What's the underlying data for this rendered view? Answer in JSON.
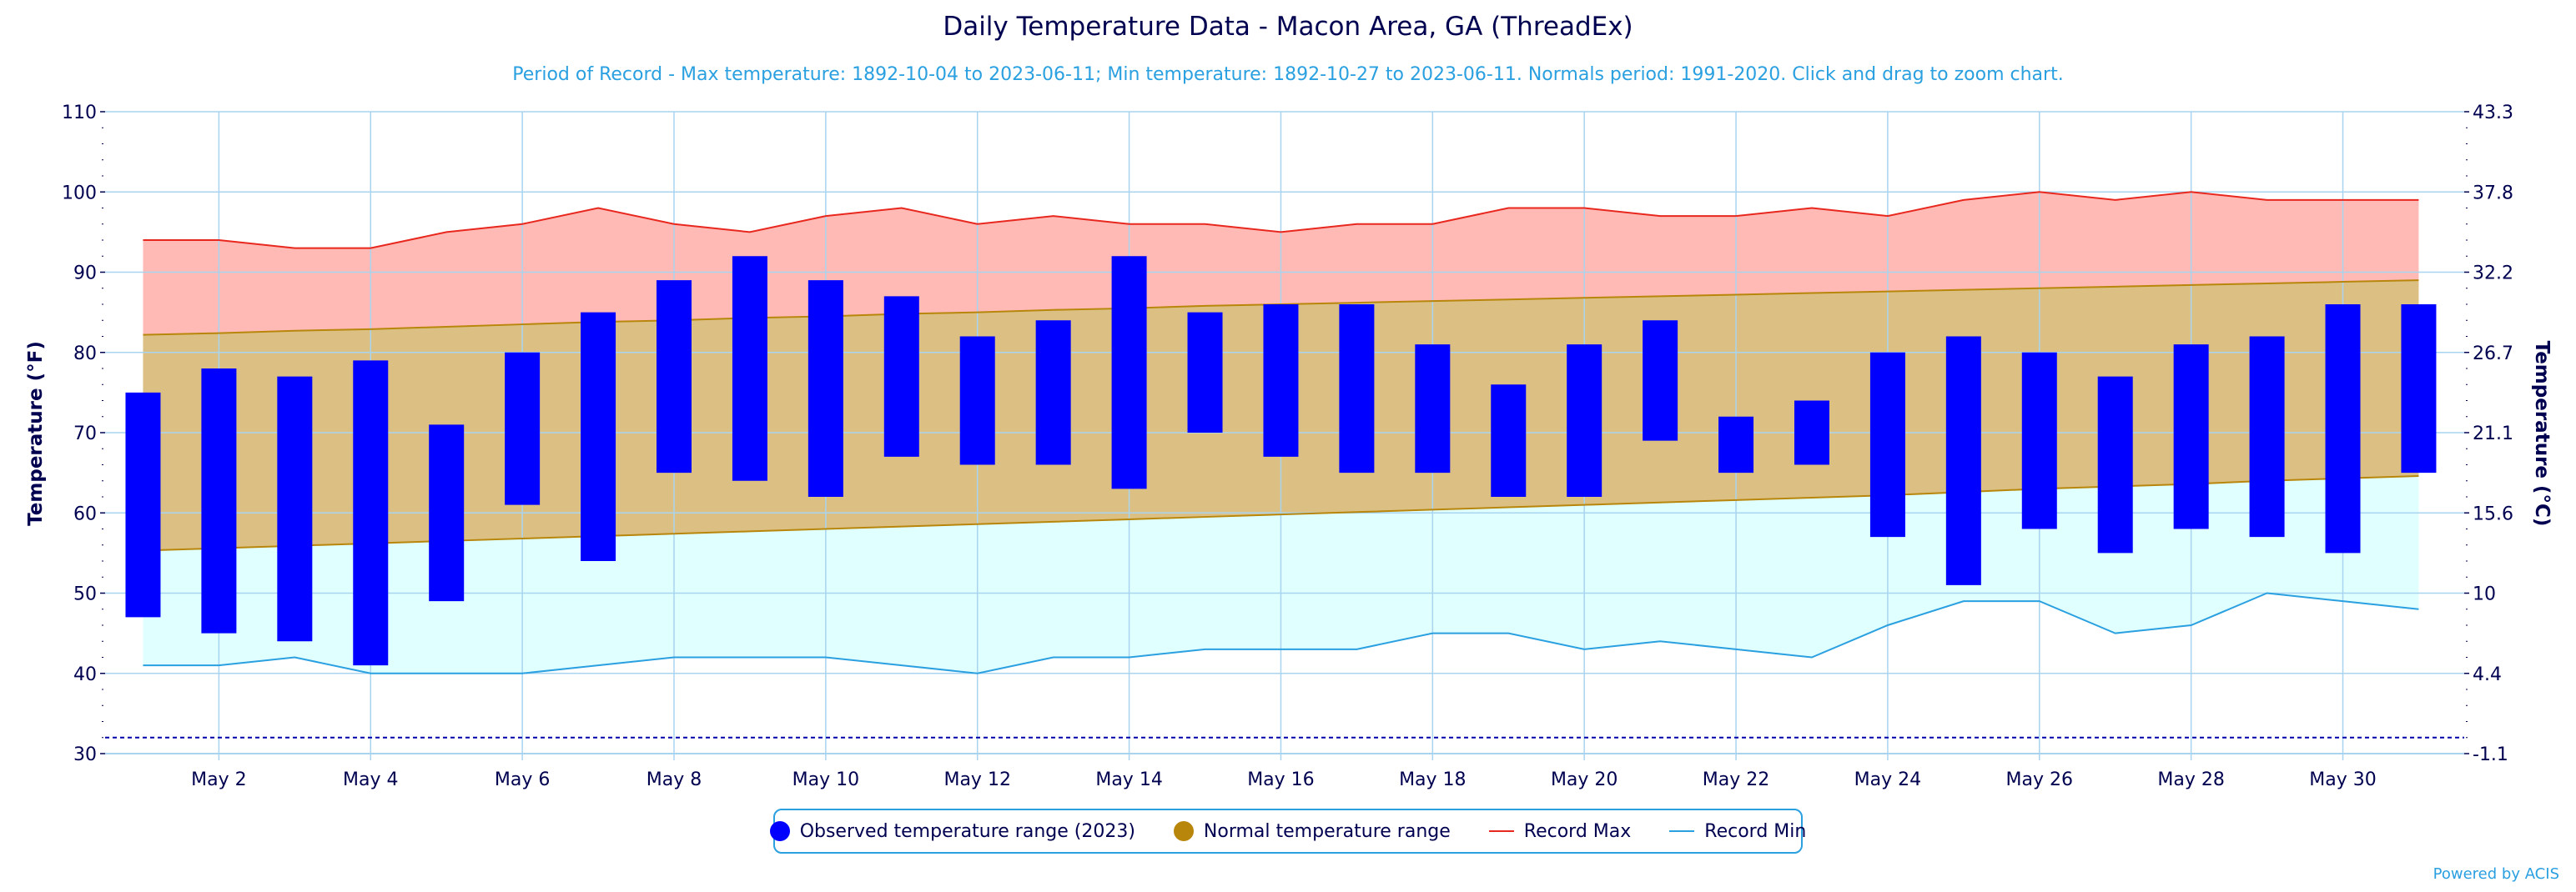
{
  "chart_data": {
    "type": "bar",
    "title": "Daily Temperature Data - Macon Area, GA (ThreadEx)",
    "subtitle": "Period of Record - Max temperature: 1892-10-04 to 2023-06-11; Min temperature: 1892-10-27 to 2023-06-11. Normals period: 1991-2020. Click and drag to zoom chart.",
    "ylabel": "Temperature (°F)",
    "ylabel_right": "Temperature (°C)",
    "ylim": [
      30,
      110
    ],
    "yticks": [
      30,
      40,
      50,
      60,
      70,
      80,
      90,
      100,
      110
    ],
    "yticks_right": [
      "-1.1",
      "4.4",
      "10",
      "15.6",
      "21.1",
      "26.7",
      "32.2",
      "37.8",
      "43.3"
    ],
    "x": [
      1,
      2,
      3,
      4,
      5,
      6,
      7,
      8,
      9,
      10,
      11,
      12,
      13,
      14,
      15,
      16,
      17,
      18,
      19,
      20,
      21,
      22,
      23,
      24,
      25,
      26,
      27,
      28,
      29,
      30,
      31
    ],
    "xtick_labels": [
      {
        "day": 2,
        "label": "May 2"
      },
      {
        "day": 4,
        "label": "May 4"
      },
      {
        "day": 6,
        "label": "May 6"
      },
      {
        "day": 8,
        "label": "May 8"
      },
      {
        "day": 10,
        "label": "May 10"
      },
      {
        "day": 12,
        "label": "May 12"
      },
      {
        "day": 14,
        "label": "May 14"
      },
      {
        "day": 16,
        "label": "May 16"
      },
      {
        "day": 18,
        "label": "May 18"
      },
      {
        "day": 20,
        "label": "May 20"
      },
      {
        "day": 22,
        "label": "May 22"
      },
      {
        "day": 24,
        "label": "May 24"
      },
      {
        "day": 26,
        "label": "May 26"
      },
      {
        "day": 28,
        "label": "May 28"
      },
      {
        "day": 30,
        "label": "May 30"
      }
    ],
    "observed_max": [
      75,
      78,
      77,
      79,
      71,
      80,
      85,
      89,
      92,
      89,
      87,
      82,
      84,
      92,
      85,
      86,
      86,
      81,
      76,
      81,
      84,
      72,
      74,
      80,
      82,
      80,
      77,
      81,
      82,
      86,
      86
    ],
    "observed_min": [
      47,
      45,
      44,
      41,
      49,
      61,
      54,
      65,
      64,
      62,
      67,
      66,
      66,
      63,
      70,
      67,
      65,
      65,
      62,
      62,
      69,
      65,
      66,
      57,
      51,
      58,
      55,
      58,
      57,
      55,
      65
    ],
    "normal_max": [
      82.2,
      82.4,
      82.7,
      82.9,
      83.2,
      83.5,
      83.8,
      84.0,
      84.3,
      84.5,
      84.8,
      85.0,
      85.3,
      85.5,
      85.8,
      86.0,
      86.2,
      86.4,
      86.6,
      86.8,
      87.0,
      87.2,
      87.4,
      87.6,
      87.8,
      88.0,
      88.2,
      88.4,
      88.6,
      88.8,
      89.0
    ],
    "normal_min": [
      55.3,
      55.6,
      55.9,
      56.2,
      56.5,
      56.8,
      57.1,
      57.4,
      57.7,
      58.0,
      58.3,
      58.6,
      58.9,
      59.2,
      59.5,
      59.8,
      60.1,
      60.4,
      60.7,
      61.0,
      61.3,
      61.6,
      61.9,
      62.2,
      62.6,
      63.0,
      63.3,
      63.6,
      64.0,
      64.3,
      64.6
    ],
    "record_max": [
      94,
      94,
      93,
      93,
      95,
      96,
      98,
      96,
      95,
      97,
      98,
      96,
      97,
      96,
      96,
      95,
      96,
      96,
      98,
      98,
      97,
      97,
      98,
      97,
      99,
      100,
      99,
      100,
      99,
      99,
      99
    ],
    "record_min": [
      41,
      41,
      42,
      40,
      40,
      40,
      41,
      42,
      42,
      42,
      41,
      40,
      42,
      42,
      43,
      43,
      43,
      45,
      45,
      43,
      44,
      43,
      42,
      46,
      49,
      49,
      45,
      46,
      50,
      49,
      48
    ],
    "freezing_line": 32,
    "legend": [
      {
        "label": "Observed temperature range (2023)",
        "color": "#0000ff",
        "kind": "dot"
      },
      {
        "label": "Normal temperature range",
        "color": "#b8860b",
        "kind": "dot"
      },
      {
        "label": "Record Max",
        "color": "#e8281e",
        "kind": "line"
      },
      {
        "label": "Record Min",
        "color": "#2aa0e0",
        "kind": "line"
      }
    ],
    "legend_position": "bottom-center",
    "grid": true
  },
  "colors": {
    "observed": "#0000ff",
    "normal_fill": "#dcc083",
    "normal_line": "#b8860b",
    "record_max_fill": "#ffbab5",
    "record_max_line": "#e8281e",
    "record_min_fill": "#e0ffff",
    "record_min_line": "#2aa0e0",
    "text": "#000050",
    "grid": "#a8d4f0"
  },
  "credit": "Powered by ACIS"
}
